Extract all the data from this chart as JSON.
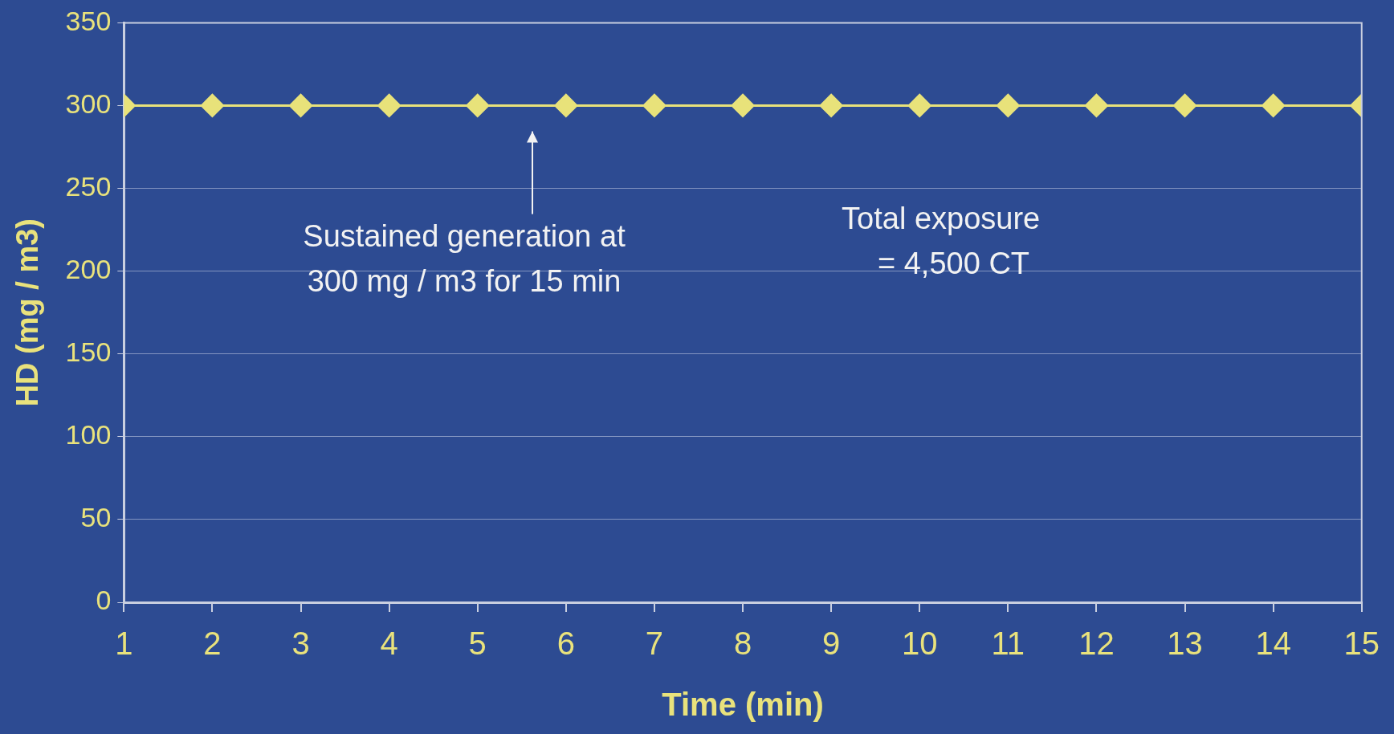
{
  "chart_data": {
    "type": "line",
    "xlabel": "Time (min)",
    "ylabel": "HD (mg / m3)",
    "x": [
      1,
      2,
      3,
      4,
      5,
      6,
      7,
      8,
      9,
      10,
      11,
      12,
      13,
      14,
      15
    ],
    "series": [
      {
        "color": "#e8e27a",
        "values": [
          300,
          300,
          300,
          300,
          300,
          300,
          300,
          300,
          300,
          300,
          300,
          300,
          300,
          300,
          300
        ]
      }
    ],
    "xlim": [
      1,
      15
    ],
    "xticks": [
      1,
      2,
      3,
      4,
      5,
      6,
      7,
      8,
      9,
      10,
      11,
      12,
      13,
      14,
      15
    ],
    "ylim": [
      0,
      350
    ],
    "yticks": [
      0,
      50,
      100,
      150,
      200,
      250,
      300,
      350
    ],
    "grid": "y",
    "legend": false,
    "marker": "diamond",
    "line_style": "solid",
    "annotations": [
      "Sustained generation at\n300 mg / m3 for 15 min",
      "Total exposure\n   = 4,500 CT"
    ]
  }
}
